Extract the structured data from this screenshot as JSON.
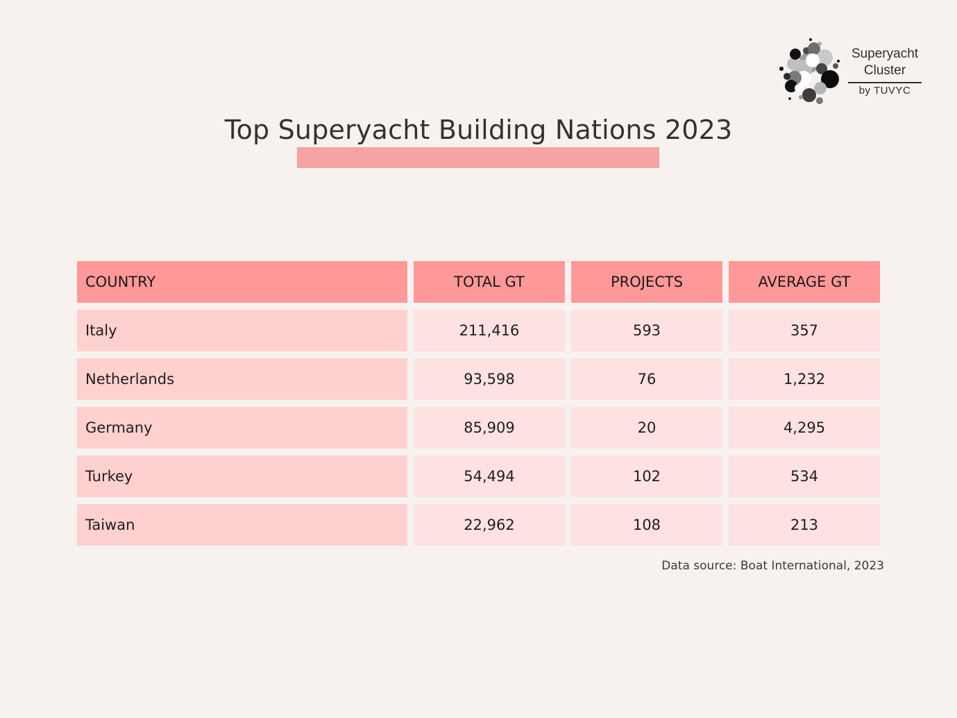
{
  "logo": {
    "line1": "Superyacht",
    "line2": "Cluster",
    "by": "by TUVYC"
  },
  "title": "Top Superyacht Building Nations 2023",
  "colors": {
    "background": "#f7f2ef",
    "header": "#ff9898",
    "country_cell": "#ffd0d0",
    "value_cell": "#fee1e1",
    "title_bar": "#f5a3a3"
  },
  "chart_data": {
    "type": "table",
    "columns": [
      "COUNTRY",
      "TOTAL GT",
      "PROJECTS",
      "AVERAGE GT"
    ],
    "rows": [
      [
        "Italy",
        "211,416",
        "593",
        "357"
      ],
      [
        "Netherlands",
        "93,598",
        "76",
        "1,232"
      ],
      [
        "Germany",
        "85,909",
        "20",
        "4,295"
      ],
      [
        "Turkey",
        "54,494",
        "102",
        "534"
      ],
      [
        "Taiwan",
        "22,962",
        "108",
        "213"
      ]
    ]
  },
  "source": "Data source: Boat International, 2023"
}
